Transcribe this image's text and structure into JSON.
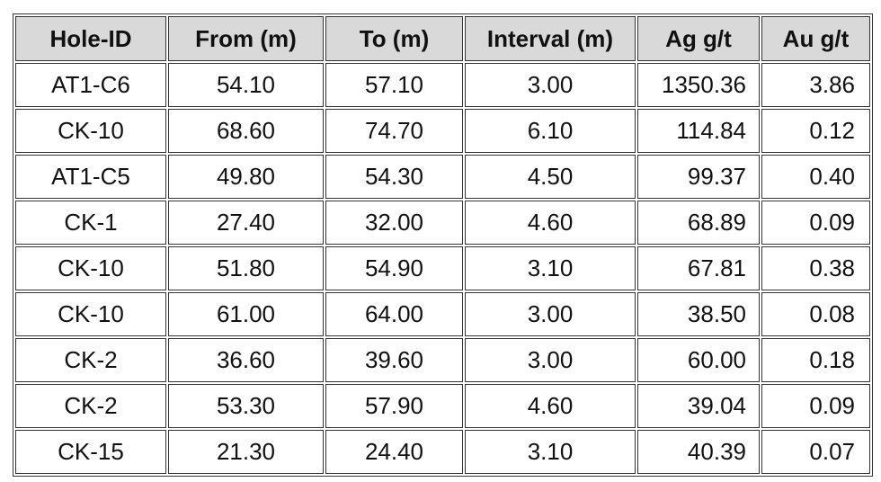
{
  "table": {
    "header": [
      "Hole-ID",
      "From (m)",
      "To (m)",
      "Interval (m)",
      "Ag g/t",
      "Au g/t"
    ],
    "rows": [
      [
        "AT1-C6",
        "54.10",
        "57.10",
        "3.00",
        "1350.36",
        "3.86"
      ],
      [
        "CK-10",
        "68.60",
        "74.70",
        "6.10",
        "114.84",
        "0.12"
      ],
      [
        "AT1-C5",
        "49.80",
        "54.30",
        "4.50",
        "99.37",
        "0.40"
      ],
      [
        "CK-1",
        "27.40",
        "32.00",
        "4.60",
        "68.89",
        "0.09"
      ],
      [
        "CK-10",
        "51.80",
        "54.90",
        "3.10",
        "67.81",
        "0.38"
      ],
      [
        "CK-10",
        "61.00",
        "64.00",
        "3.00",
        "38.50",
        "0.08"
      ],
      [
        "CK-2",
        "36.60",
        "39.60",
        "3.00",
        "60.00",
        "0.18"
      ],
      [
        "CK-2",
        "53.30",
        "57.90",
        "4.60",
        "39.04",
        "0.09"
      ],
      [
        "CK-15",
        "21.30",
        "24.40",
        "3.10",
        "40.39",
        "0.07"
      ]
    ]
  }
}
